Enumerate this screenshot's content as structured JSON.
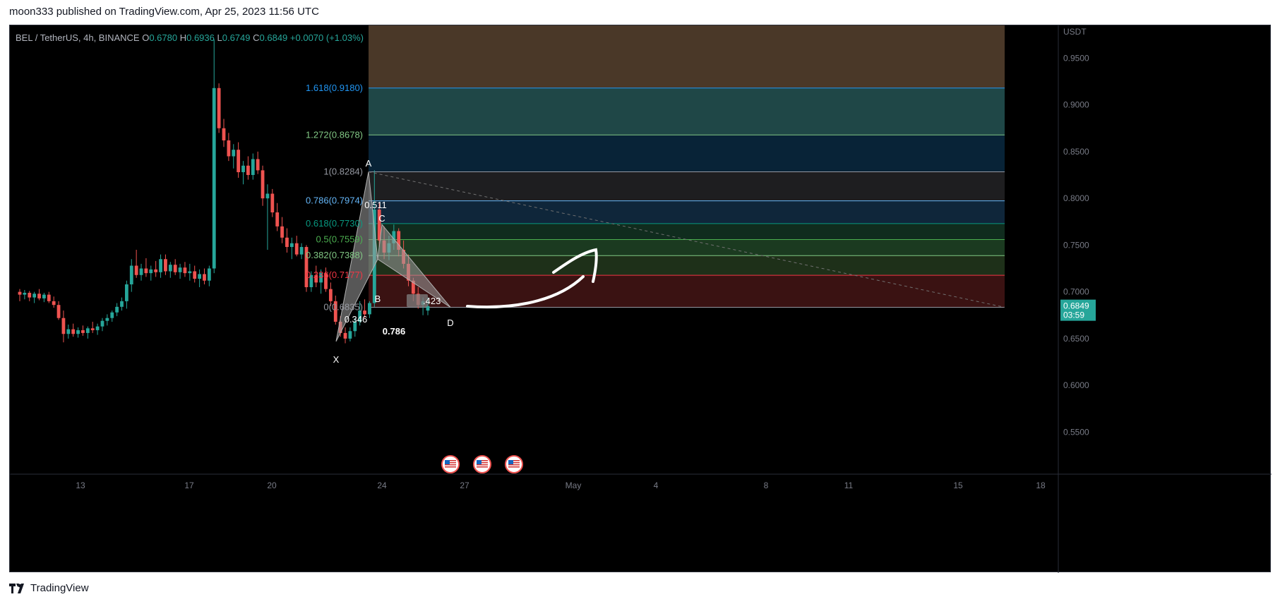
{
  "header": {
    "published": "moon333 published on TradingView.com, Apr 25, 2023 11:56 UTC"
  },
  "footer": {
    "brand": "TradingView"
  },
  "legend": {
    "symbol": "BEL / TetherUS, 4h, BINANCE",
    "o_label": "O",
    "o": "0.6780",
    "h_label": "H",
    "h": "0.6936",
    "l_label": "L",
    "l": "0.6749",
    "c_label": "C",
    "c": "0.6849",
    "change": "+0.0070 (+1.03%)"
  },
  "price_axis": {
    "currency": "USDT",
    "ticks": [
      "0.9500",
      "0.9000",
      "0.8500",
      "0.8000",
      "0.7500",
      "0.7000",
      "0.6500",
      "0.6000",
      "0.5500"
    ],
    "tick_values": [
      0.95,
      0.9,
      0.85,
      0.8,
      0.75,
      0.7,
      0.65,
      0.6,
      0.55
    ],
    "last_price": "0.6849",
    "countdown": "03:59"
  },
  "time_axis": {
    "ticks": [
      "13",
      "17",
      "20",
      "24",
      "27",
      "May",
      "4",
      "8",
      "11",
      "15",
      "18"
    ]
  },
  "colors": {
    "up": "#26a69a",
    "down": "#ef5350",
    "background": "#000000"
  },
  "chart_data": {
    "type": "candlestick",
    "symbol": "BEL / TetherUS",
    "interval": "4h",
    "exchange": "BINANCE",
    "ylim": [
      0.505,
      0.985
    ],
    "x_categories": [
      "13",
      "17",
      "20",
      "24",
      "27",
      "May",
      "4",
      "8",
      "11",
      "15",
      "18"
    ],
    "current_price": 0.6849,
    "fibonacci_levels": [
      {
        "label": "1.618(0.9180)",
        "value": 0.918,
        "color": "#2196f3"
      },
      {
        "label": "1.272(0.8678)",
        "value": 0.8678,
        "color": "#81c784"
      },
      {
        "label": "1(0.8284)",
        "value": 0.8284,
        "color": "#9598a1"
      },
      {
        "label": "0.786(0.7974)",
        "value": 0.7974,
        "color": "#64b5f6"
      },
      {
        "label": "0.618(0.7730)",
        "value": 0.773,
        "color": "#089981"
      },
      {
        "label": "0.5(0.7559)",
        "value": 0.7559,
        "color": "#4caf50"
      },
      {
        "label": "0.382(0.7388)",
        "value": 0.7388,
        "color": "#81c784"
      },
      {
        "label": "0.236(0.7177)",
        "value": 0.7177,
        "color": "#f23645"
      },
      {
        "label": "0(0.6835)",
        "value": 0.6835,
        "color": "#9598a1"
      }
    ],
    "harmonic_pattern": {
      "points": [
        {
          "label": "X",
          "value": 0.647
        },
        {
          "label": "A",
          "value": 0.8284
        },
        {
          "label": "B",
          "value": 0.735
        },
        {
          "label": "C",
          "value": 0.772
        },
        {
          "label": "D",
          "value": 0.6835
        }
      ],
      "ratios": [
        "0.511",
        "0.346",
        "0.786",
        ".423"
      ]
    }
  }
}
